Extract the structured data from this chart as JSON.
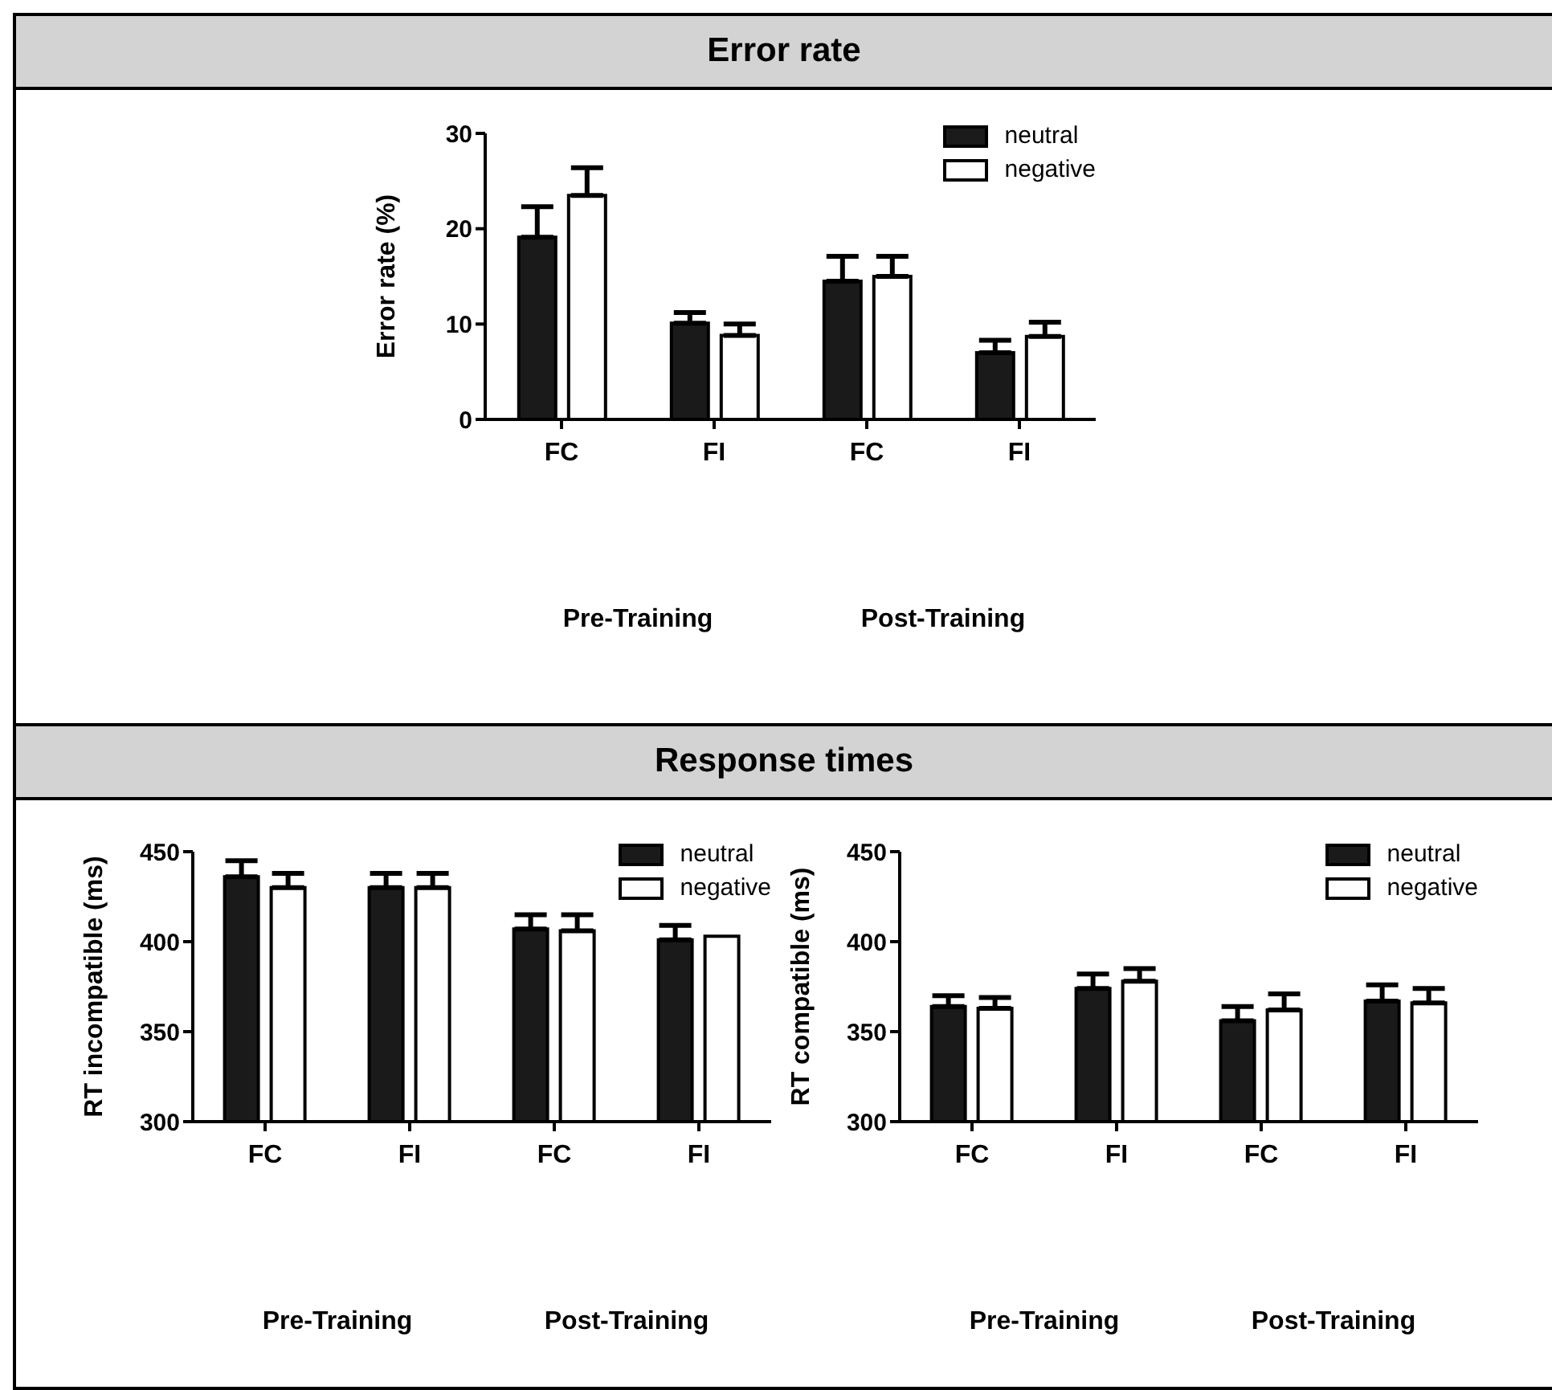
{
  "chart_data": [
    {
      "type": "bar",
      "title": "Error rate",
      "ylabel": "Error rate (%)",
      "categories": [
        "FC",
        "FI",
        "FC",
        "FI"
      ],
      "annotations": [
        "Pre-Training",
        "Post-Training"
      ],
      "ylim": [
        0,
        30
      ],
      "yticks": [
        0,
        10,
        20,
        30
      ],
      "legend": "top right",
      "series": [
        {
          "name": "neutral",
          "color": "#1a1a1a",
          "values": [
            19.1,
            10.1,
            14.5,
            7.0
          ],
          "errors": [
            3.2,
            1.1,
            2.6,
            1.3
          ]
        },
        {
          "name": "negative",
          "color": "#ffffff",
          "values": [
            23.5,
            8.8,
            15.0,
            8.7
          ],
          "errors": [
            2.9,
            1.2,
            2.1,
            1.5
          ]
        }
      ]
    },
    {
      "type": "bar",
      "title": "Response times",
      "ylabel": "RT incompatible (ms)",
      "categories": [
        "FC",
        "FI",
        "FC",
        "FI"
      ],
      "annotations": [
        "Pre-Training",
        "Post-Training"
      ],
      "ylim": [
        300,
        450
      ],
      "yticks": [
        300,
        350,
        400,
        450
      ],
      "legend": "top right",
      "series": [
        {
          "name": "neutral",
          "color": "#1a1a1a",
          "values": [
            436,
            430,
            407,
            401
          ],
          "errors": [
            9,
            8,
            8,
            8
          ]
        },
        {
          "name": "negative",
          "color": "#ffffff",
          "values": [
            430,
            430,
            406,
            403
          ],
          "errors": [
            8,
            8,
            9,
            null
          ]
        }
      ]
    },
    {
      "type": "bar",
      "ylabel": "RT compatible (ms)",
      "categories": [
        "FC",
        "FI",
        "FC",
        "FI"
      ],
      "annotations": [
        "Pre-Training",
        "Post-Training"
      ],
      "ylim": [
        300,
        450
      ],
      "yticks": [
        300,
        350,
        400,
        450
      ],
      "legend": "top right",
      "series": [
        {
          "name": "neutral",
          "color": "#1a1a1a",
          "values": [
            364,
            374,
            356,
            367
          ],
          "errors": [
            6,
            8,
            8,
            9
          ]
        },
        {
          "name": "negative",
          "color": "#ffffff",
          "values": [
            363,
            378,
            362,
            366
          ],
          "errors": [
            6,
            7,
            9,
            8
          ]
        }
      ]
    }
  ]
}
